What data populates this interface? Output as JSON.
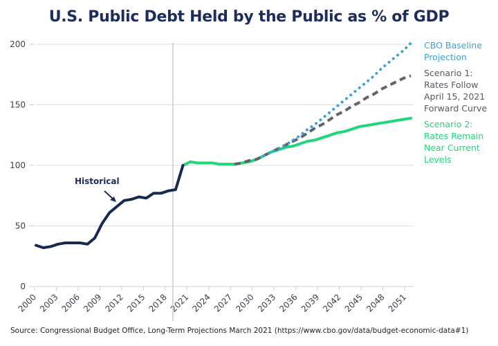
{
  "chart_data": {
    "type": "line",
    "title": "U.S. Public Debt Held by the Public as % of GDP",
    "xlabel": "",
    "ylabel": "",
    "ylim": [
      0,
      200
    ],
    "xlim": [
      2000,
      2051
    ],
    "yticks": [
      "0",
      "50",
      "100",
      "150",
      "200"
    ],
    "ytick_values": [
      0,
      50,
      100,
      150,
      200
    ],
    "xticks": [
      "2000",
      "2003",
      "2006",
      "2009",
      "2012",
      "2015",
      "2018",
      "2021",
      "2024",
      "2027",
      "2030",
      "2033",
      "2036",
      "2039",
      "2042",
      "2045",
      "2048",
      "2051"
    ],
    "grid": "horizontal",
    "divider_year": 2019,
    "annotation": {
      "text": "Historical",
      "arrow": true
    },
    "legend_placement": "right",
    "series": [
      {
        "name": "Historical",
        "style": "solid",
        "color": "#162a4d",
        "x": [
          2000,
          2001,
          2002,
          2003,
          2004,
          2005,
          2006,
          2007,
          2008,
          2009,
          2010,
          2011,
          2012,
          2013,
          2014,
          2015,
          2016,
          2017,
          2018,
          2019,
          2020
        ],
        "values": [
          34,
          32,
          33,
          35,
          36,
          36,
          36,
          35,
          40,
          52,
          61,
          66,
          71,
          72,
          74,
          73,
          77,
          77,
          79,
          80,
          100
        ]
      },
      {
        "name": "Scenario 2: Rates Remain Near Current Levels",
        "style": "solid",
        "color": "#1fd67a",
        "x": [
          2020,
          2021,
          2022,
          2023,
          2024,
          2025,
          2026,
          2027,
          2028,
          2029,
          2030,
          2031,
          2032,
          2033,
          2034,
          2035,
          2036,
          2037,
          2038,
          2039,
          2040,
          2041,
          2042,
          2043,
          2044,
          2045,
          2046,
          2047,
          2048,
          2049,
          2050,
          2051
        ],
        "values": [
          100,
          103,
          102,
          102,
          102,
          101,
          101,
          101,
          102,
          103,
          105,
          108,
          111,
          113,
          115,
          116,
          118,
          120,
          121,
          123,
          125,
          127,
          128,
          130,
          132,
          133,
          134,
          135,
          136,
          137,
          138,
          139
        ]
      },
      {
        "name": "Scenario 1: Rates Follow April 15, 2021 Forward Curve",
        "style": "dashed",
        "color": "#5f646c",
        "x": [
          2027,
          2028,
          2029,
          2030,
          2031,
          2032,
          2033,
          2034,
          2035,
          2036,
          2037,
          2038,
          2039,
          2040,
          2041,
          2042,
          2043,
          2044,
          2045,
          2046,
          2047,
          2048,
          2049,
          2050,
          2051
        ],
        "values": [
          101,
          102,
          104,
          105,
          108,
          111,
          114,
          117,
          120,
          123,
          127,
          131,
          134,
          138,
          142,
          145,
          149,
          152,
          156,
          159,
          163,
          166,
          169,
          172,
          174
        ]
      },
      {
        "name": "CBO Baseline Projection",
        "style": "dotted",
        "color": "#3aa0d8",
        "x": [
          2031,
          2032,
          2033,
          2034,
          2035,
          2036,
          2037,
          2038,
          2039,
          2040,
          2041,
          2042,
          2043,
          2044,
          2045,
          2046,
          2047,
          2048,
          2049,
          2050,
          2051
        ],
        "values": [
          108,
          111,
          114,
          117,
          121,
          125,
          130,
          134,
          139,
          144,
          149,
          154,
          159,
          164,
          169,
          174,
          180,
          185,
          190,
          195,
          201
        ]
      }
    ]
  },
  "legend": {
    "cbo": [
      "CBO Baseline",
      "Projection"
    ],
    "s1": [
      "Scenario 1:",
      "Rates Follow",
      "April 15, 2021",
      "Forward Curve"
    ],
    "s2": [
      "Scenario 2:",
      "Rates Remain",
      "Near Current",
      "Levels"
    ]
  },
  "source": "Source: Congressional Budget Office, Long-Term Projections March 2021 (https://www.cbo.gov/data/budget-economic-data#1)"
}
